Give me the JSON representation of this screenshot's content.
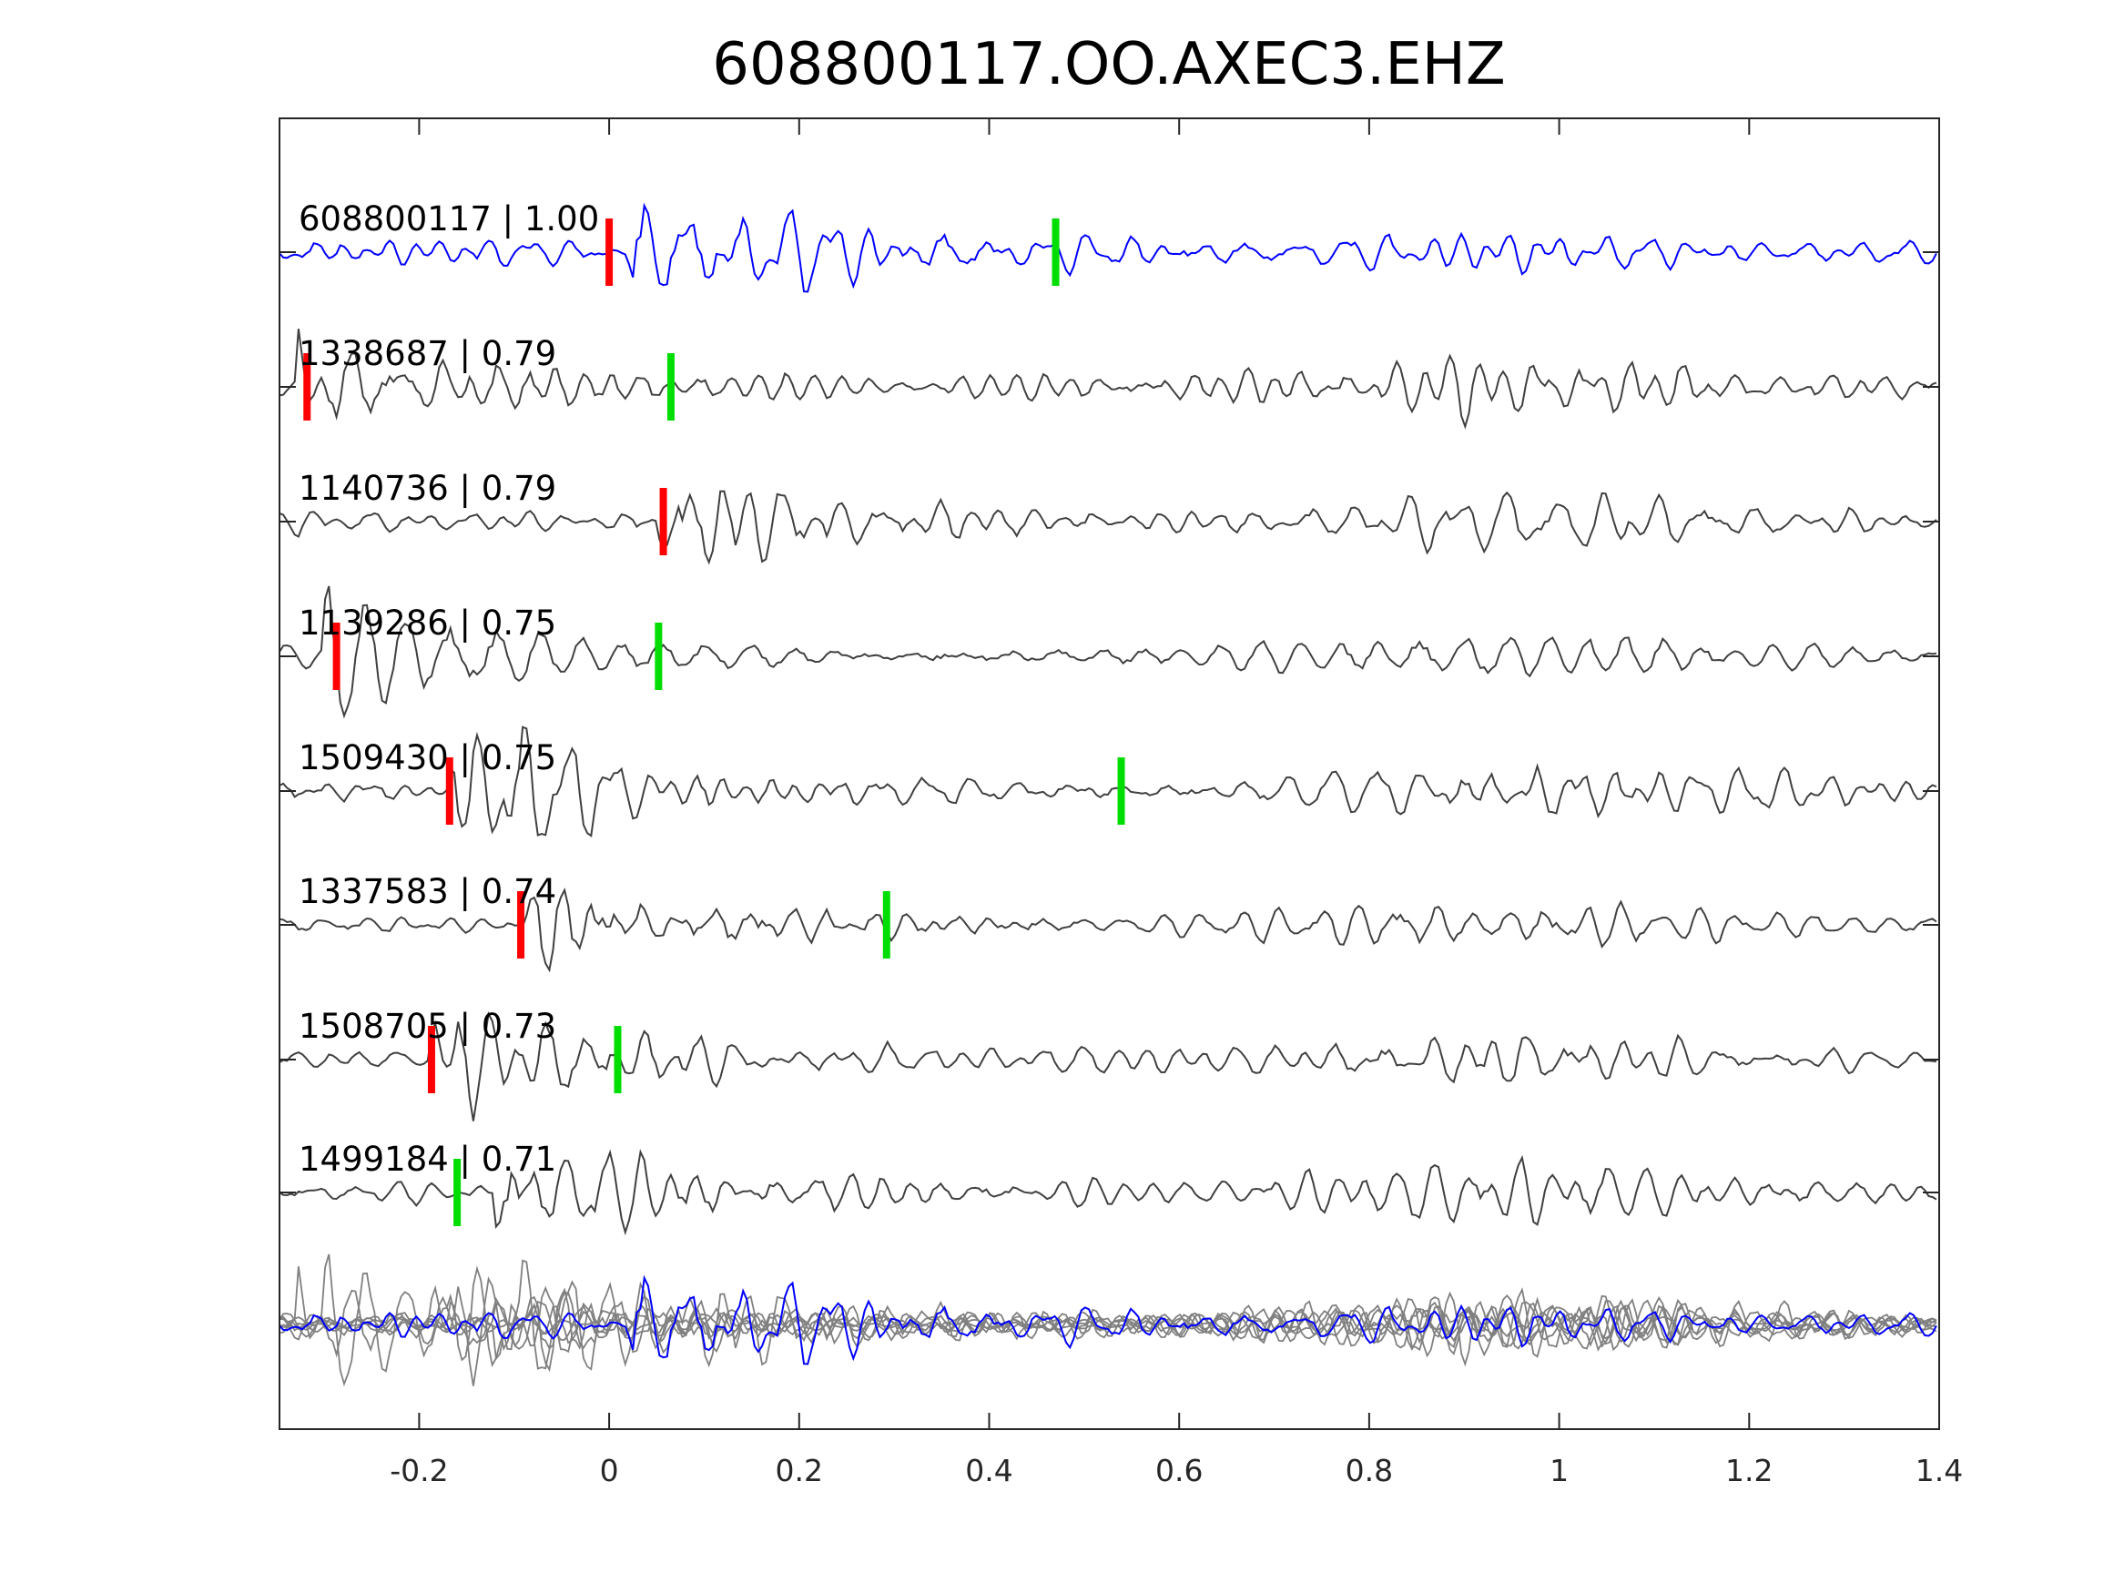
{
  "chart_data": {
    "type": "line",
    "title": "608800117.OO.AXEC3.EHZ",
    "xlabel": "",
    "ylabel": "",
    "xlim": [
      -0.347,
      1.4
    ],
    "xticks": [
      -0.2,
      0,
      0.2,
      0.4,
      0.6,
      0.8,
      1,
      1.2,
      1.4
    ],
    "xtick_labels": [
      "-0.2",
      "0",
      "0.2",
      "0.4",
      "0.6",
      "0.8",
      "1",
      "1.2",
      "1.4"
    ],
    "grid": false,
    "colors": {
      "reference": "#0000ff",
      "neighbor": "#404040",
      "stack_neighbor": "#808080",
      "p_pick": "#ff0000",
      "s_pick": "#00dd00",
      "axes": "#262626"
    },
    "traces": [
      {
        "id": "608800117",
        "cc": "1.00",
        "label": "608800117 | 1.00",
        "reference": true,
        "p_pick": 0.0,
        "s_pick": 0.47,
        "onset": 0.02,
        "seed": 11
      },
      {
        "id": "1338687",
        "cc": "0.79",
        "label": "1338687 | 0.79",
        "reference": false,
        "p_pick": -0.318,
        "s_pick": 0.065,
        "onset": -0.33,
        "seed": 23
      },
      {
        "id": "1140736",
        "cc": "0.79",
        "label": "1140736 | 0.79",
        "reference": false,
        "p_pick": 0.057,
        "s_pick": null,
        "onset": 0.05,
        "seed": 37
      },
      {
        "id": "1139286",
        "cc": "0.75",
        "label": "1139286 | 0.75",
        "reference": false,
        "p_pick": -0.287,
        "s_pick": 0.052,
        "onset": -0.3,
        "seed": 41
      },
      {
        "id": "1509430",
        "cc": "0.75",
        "label": "1509430 | 0.75",
        "reference": false,
        "p_pick": -0.168,
        "s_pick": 0.539,
        "onset": -0.17,
        "seed": 53
      },
      {
        "id": "1337583",
        "cc": "0.74",
        "label": "1337583 | 0.74",
        "reference": false,
        "p_pick": -0.093,
        "s_pick": 0.292,
        "onset": -0.09,
        "seed": 67
      },
      {
        "id": "1508705",
        "cc": "0.73",
        "label": "1508705 | 0.73",
        "reference": false,
        "p_pick": -0.187,
        "s_pick": 0.009,
        "onset": -0.19,
        "seed": 71
      },
      {
        "id": "1499184",
        "cc": "0.71",
        "label": "1499184 | 0.71",
        "reference": false,
        "p_pick": null,
        "s_pick": -0.16,
        "onset": -0.12,
        "seed": 83
      }
    ],
    "stack_panel": "overlay of all traces"
  }
}
